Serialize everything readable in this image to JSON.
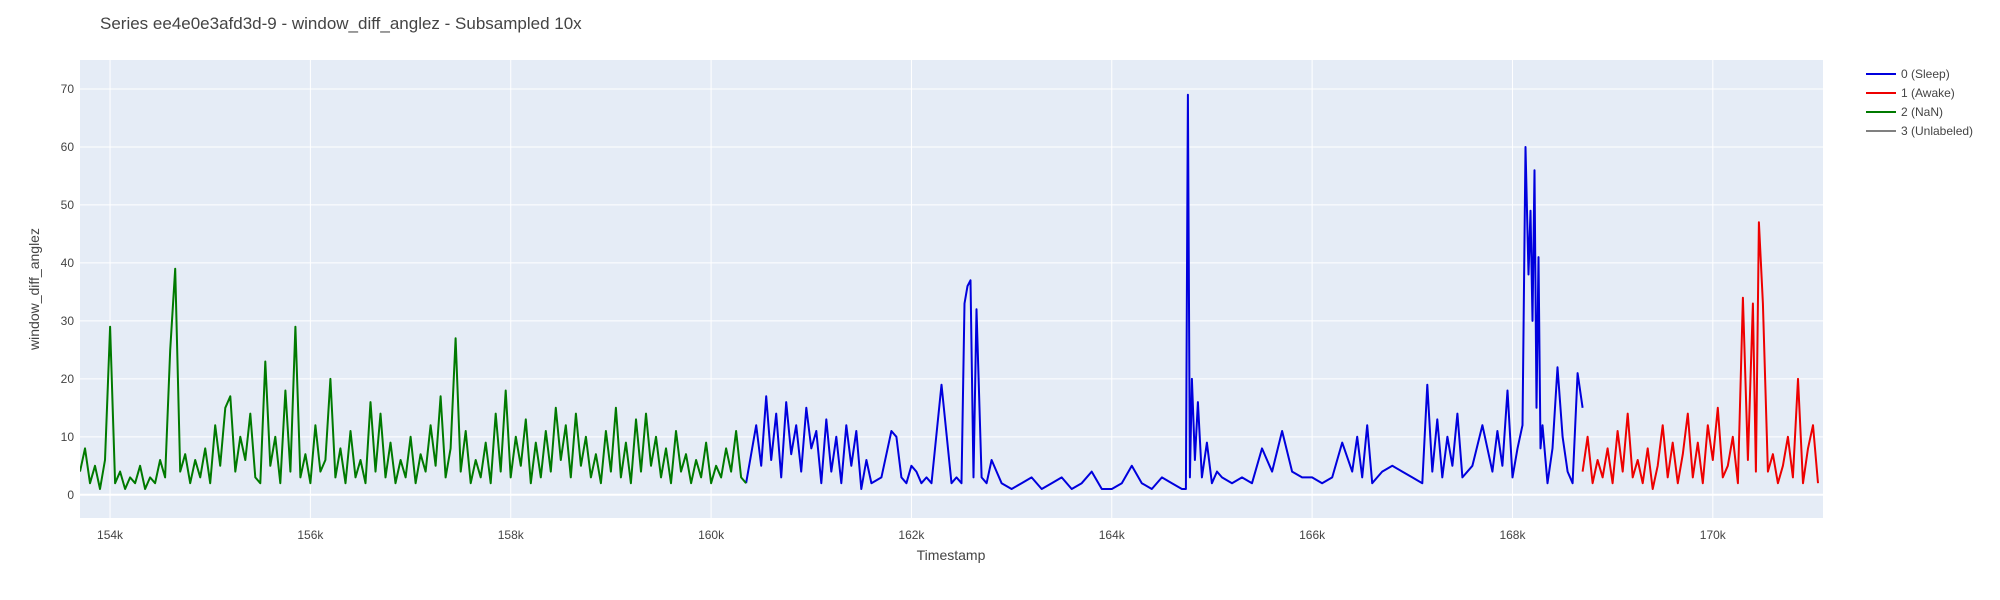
{
  "chart_data": {
    "type": "line",
    "title": "Series ee4e0e3afd3d-9 - window_diff_anglez - Subsampled 10x",
    "xlabel": "Timestamp",
    "ylabel": "window_diff_anglez",
    "xlim": [
      153700,
      171100
    ],
    "ylim": [
      -4,
      75
    ],
    "xticks": [
      154000,
      156000,
      158000,
      160000,
      162000,
      164000,
      166000,
      168000,
      170000
    ],
    "xtick_labels": [
      "154k",
      "156k",
      "158k",
      "160k",
      "162k",
      "164k",
      "166k",
      "168k",
      "170k"
    ],
    "yticks": [
      0,
      10,
      20,
      30,
      40,
      50,
      60,
      70
    ],
    "ytick_labels": [
      "0",
      "10",
      "20",
      "30",
      "40",
      "50",
      "60",
      "70"
    ],
    "grid": true,
    "plot_background": "#e5ecf6",
    "legend_position": "top-right",
    "series": [
      {
        "name": "0 (Sleep)",
        "color": "#0000dd",
        "x": [
          160350,
          160450,
          160500,
          160550,
          160600,
          160650,
          160700,
          160750,
          160800,
          160850,
          160900,
          160950,
          161000,
          161050,
          161100,
          161150,
          161200,
          161250,
          161300,
          161350,
          161400,
          161450,
          161500,
          161550,
          161600,
          161700,
          161800,
          161850,
          161900,
          161950,
          162000,
          162050,
          162100,
          162150,
          162200,
          162300,
          162400,
          162450,
          162500,
          162530,
          162560,
          162590,
          162620,
          162650,
          162700,
          162750,
          162800,
          162850,
          162900,
          163000,
          163100,
          163200,
          163300,
          163400,
          163500,
          163600,
          163700,
          163800,
          163900,
          164000,
          164100,
          164200,
          164300,
          164400,
          164500,
          164600,
          164700,
          164740,
          164760,
          164780,
          164800,
          164830,
          164860,
          164900,
          164950,
          165000,
          165050,
          165100,
          165200,
          165300,
          165400,
          165500,
          165600,
          165700,
          165800,
          165900,
          166000,
          166100,
          166200,
          166300,
          166400,
          166450,
          166500,
          166550,
          166600,
          166650,
          166700,
          166800,
          166900,
          167000,
          167100,
          167150,
          167200,
          167250,
          167300,
          167350,
          167400,
          167450,
          167500,
          167600,
          167700,
          167800,
          167850,
          167900,
          167950,
          168000,
          168050,
          168100,
          168130,
          168160,
          168180,
          168200,
          168220,
          168240,
          168260,
          168280,
          168300,
          168350,
          168400,
          168450,
          168500,
          168550,
          168600,
          168650,
          168700
        ],
        "y": [
          2,
          12,
          5,
          17,
          6,
          14,
          3,
          16,
          7,
          12,
          4,
          15,
          8,
          11,
          2,
          13,
          4,
          10,
          2,
          12,
          5,
          11,
          1,
          6,
          2,
          3,
          11,
          10,
          3,
          2,
          5,
          4,
          2,
          3,
          2,
          19,
          2,
          3,
          2,
          33,
          36,
          37,
          3,
          32,
          3,
          2,
          6,
          4,
          2,
          1,
          2,
          3,
          1,
          2,
          3,
          1,
          2,
          4,
          1,
          1,
          2,
          5,
          2,
          1,
          3,
          2,
          1,
          1,
          69,
          3,
          20,
          6,
          16,
          3,
          9,
          2,
          4,
          3,
          2,
          3,
          2,
          8,
          4,
          11,
          4,
          3,
          3,
          2,
          3,
          9,
          4,
          10,
          3,
          12,
          2,
          3,
          4,
          5,
          4,
          3,
          2,
          19,
          4,
          13,
          3,
          10,
          5,
          14,
          3,
          5,
          12,
          4,
          11,
          5,
          18,
          3,
          8,
          12,
          60,
          38,
          49,
          30,
          56,
          15,
          41,
          8,
          12,
          2,
          8,
          22,
          10,
          4,
          2,
          21,
          15
        ]
      },
      {
        "name": "1 (Awake)",
        "color": "#ee0000",
        "x": [
          168700,
          168750,
          168800,
          168850,
          168900,
          168950,
          169000,
          169050,
          169100,
          169150,
          169200,
          169250,
          169300,
          169350,
          169400,
          169450,
          169500,
          169550,
          169600,
          169650,
          169700,
          169750,
          169800,
          169850,
          169900,
          169950,
          170000,
          170050,
          170100,
          170150,
          170200,
          170250,
          170300,
          170350,
          170400,
          170430,
          170460,
          170500,
          170550,
          170600,
          170650,
          170700,
          170750,
          170800,
          170850,
          170900,
          170950,
          171000,
          171050
        ],
        "y": [
          4,
          10,
          2,
          6,
          3,
          8,
          2,
          11,
          4,
          14,
          3,
          6,
          2,
          8,
          1,
          5,
          12,
          3,
          9,
          2,
          7,
          14,
          3,
          9,
          2,
          12,
          6,
          15,
          3,
          5,
          10,
          2,
          34,
          6,
          33,
          4,
          47,
          33,
          4,
          7,
          2,
          5,
          10,
          3,
          20,
          2,
          8,
          12,
          2
        ]
      },
      {
        "name": "2 (NaN)",
        "color": "#007a00",
        "x": [
          153700,
          153750,
          153800,
          153850,
          153900,
          153950,
          154000,
          154050,
          154100,
          154150,
          154200,
          154250,
          154300,
          154350,
          154400,
          154450,
          154500,
          154550,
          154600,
          154650,
          154700,
          154750,
          154800,
          154850,
          154900,
          154950,
          155000,
          155050,
          155100,
          155150,
          155200,
          155250,
          155300,
          155350,
          155400,
          155450,
          155500,
          155550,
          155600,
          155650,
          155700,
          155750,
          155800,
          155850,
          155900,
          155950,
          156000,
          156050,
          156100,
          156150,
          156200,
          156250,
          156300,
          156350,
          156400,
          156450,
          156500,
          156550,
          156600,
          156650,
          156700,
          156750,
          156800,
          156850,
          156900,
          156950,
          157000,
          157050,
          157100,
          157150,
          157200,
          157250,
          157300,
          157350,
          157400,
          157450,
          157500,
          157550,
          157600,
          157650,
          157700,
          157750,
          157800,
          157850,
          157900,
          157950,
          158000,
          158050,
          158100,
          158150,
          158200,
          158250,
          158300,
          158350,
          158400,
          158450,
          158500,
          158550,
          158600,
          158650,
          158700,
          158750,
          158800,
          158850,
          158900,
          158950,
          159000,
          159050,
          159100,
          159150,
          159200,
          159250,
          159300,
          159350,
          159400,
          159450,
          159500,
          159550,
          159600,
          159650,
          159700,
          159750,
          159800,
          159850,
          159900,
          159950,
          160000,
          160050,
          160100,
          160150,
          160200,
          160250,
          160300,
          160350
        ],
        "y": [
          4,
          8,
          2,
          5,
          1,
          6,
          29,
          2,
          4,
          1,
          3,
          2,
          5,
          1,
          3,
          2,
          6,
          3,
          25,
          39,
          4,
          7,
          2,
          6,
          3,
          8,
          2,
          12,
          5,
          15,
          17,
          4,
          10,
          6,
          14,
          3,
          2,
          23,
          5,
          10,
          2,
          18,
          4,
          29,
          3,
          7,
          2,
          12,
          4,
          6,
          20,
          3,
          8,
          2,
          11,
          3,
          6,
          2,
          16,
          4,
          14,
          3,
          9,
          2,
          6,
          3,
          10,
          2,
          7,
          4,
          12,
          5,
          17,
          3,
          8,
          27,
          4,
          11,
          2,
          6,
          3,
          9,
          2,
          14,
          4,
          18,
          3,
          10,
          5,
          13,
          2,
          9,
          3,
          11,
          4,
          15,
          6,
          12,
          3,
          14,
          5,
          10,
          3,
          7,
          2,
          11,
          4,
          15,
          3,
          9,
          2,
          13,
          4,
          14,
          5,
          10,
          3,
          8,
          2,
          11,
          4,
          7,
          2,
          6,
          3,
          9,
          2,
          5,
          3,
          8,
          4,
          11,
          3,
          2
        ]
      },
      {
        "name": "3 (Unlabeled)",
        "color": "#808080",
        "x": [],
        "y": []
      }
    ]
  }
}
